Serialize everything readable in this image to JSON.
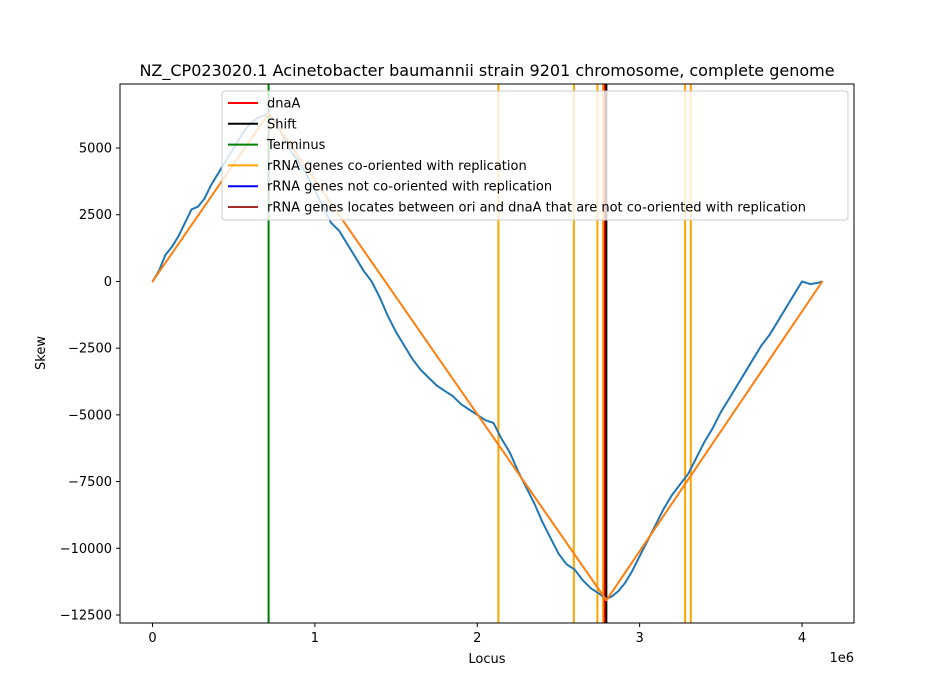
{
  "chart_data": {
    "type": "line",
    "title": "NZ_CP023020.1 Acinetobacter baumannii strain 9201 chromosome, complete genome",
    "xlabel": "Locus",
    "ylabel": "Skew",
    "x_offset_label": "1e6",
    "xlim": [
      -200000,
      4320000
    ],
    "ylim": [
      -12800,
      7400
    ],
    "x_ticks": [
      0,
      1000000,
      2000000,
      3000000,
      4000000
    ],
    "x_tick_labels": [
      "0",
      "1",
      "2",
      "3",
      "4"
    ],
    "y_ticks": [
      5000,
      2500,
      0,
      -2500,
      -5000,
      -7500,
      -10000,
      -12500
    ],
    "y_tick_labels": [
      "5000",
      "2500",
      "0",
      "−2500",
      "−5000",
      "−7500",
      "−10000",
      "−12500"
    ],
    "legend_position": "upper-right",
    "legend": [
      {
        "label": "dnaA",
        "color": "#ff0000"
      },
      {
        "label": "Shift",
        "color": "#000000"
      },
      {
        "label": "Terminus",
        "color": "#008000"
      },
      {
        "label": "rRNA genes co-oriented with replication",
        "color": "#ffa500"
      },
      {
        "label": "rRNA genes not co-oriented with replication",
        "color": "#0000ff"
      },
      {
        "label": "rRNA genes locates between ori and dnaA that are not co-oriented with replication",
        "color": "#a52a2a"
      }
    ],
    "vertical_lines": [
      {
        "name": "terminus",
        "x": 715000,
        "color": "#008000"
      },
      {
        "name": "rrna-co-oriented",
        "x": 2130000,
        "color": "#ffa500"
      },
      {
        "name": "rrna-co-oriented",
        "x": 2595000,
        "color": "#ffa500"
      },
      {
        "name": "rrna-co-oriented",
        "x": 2740000,
        "color": "#ffa500"
      },
      {
        "name": "rrna-co-oriented",
        "x": 2775000,
        "color": "#ffa500"
      },
      {
        "name": "dnaA",
        "x": 2785000,
        "color": "#ff0000"
      },
      {
        "name": "shift",
        "x": 2795000,
        "color": "#000000"
      },
      {
        "name": "rrna-co-oriented",
        "x": 3280000,
        "color": "#ffa500"
      },
      {
        "name": "rrna-co-oriented",
        "x": 3315000,
        "color": "#ffa500"
      }
    ],
    "series": [
      {
        "color": "#1f77b4",
        "x": [
          0,
          40000,
          80000,
          120000,
          160000,
          200000,
          240000,
          280000,
          320000,
          360000,
          400000,
          440000,
          480000,
          520000,
          560000,
          600000,
          640000,
          680000,
          715000,
          760000,
          800000,
          850000,
          900000,
          950000,
          1000000,
          1050000,
          1100000,
          1150000,
          1200000,
          1250000,
          1300000,
          1350000,
          1400000,
          1450000,
          1500000,
          1550000,
          1600000,
          1650000,
          1700000,
          1750000,
          1800000,
          1850000,
          1900000,
          1950000,
          2000000,
          2050000,
          2100000,
          2150000,
          2200000,
          2250000,
          2300000,
          2350000,
          2400000,
          2450000,
          2500000,
          2550000,
          2600000,
          2650000,
          2700000,
          2750000,
          2795000,
          2830000,
          2870000,
          2910000,
          2950000,
          3000000,
          3050000,
          3100000,
          3150000,
          3200000,
          3250000,
          3300000,
          3350000,
          3400000,
          3450000,
          3500000,
          3550000,
          3600000,
          3650000,
          3700000,
          3750000,
          3800000,
          3850000,
          3900000,
          3950000,
          4000000,
          4050000,
          4100000,
          4125000
        ],
        "values": [
          0,
          400,
          1000,
          1300,
          1700,
          2200,
          2700,
          2800,
          3100,
          3600,
          4000,
          4400,
          4800,
          5200,
          5600,
          5900,
          6100,
          6200,
          6300,
          6000,
          5500,
          4900,
          4500,
          4000,
          3400,
          2800,
          2200,
          1900,
          1400,
          900,
          400,
          0,
          -600,
          -1300,
          -1900,
          -2400,
          -2900,
          -3300,
          -3600,
          -3900,
          -4100,
          -4300,
          -4600,
          -4800,
          -5000,
          -5200,
          -5300,
          -5900,
          -6400,
          -7100,
          -7700,
          -8300,
          -9000,
          -9600,
          -10200,
          -10600,
          -10800,
          -11200,
          -11500,
          -11700,
          -11900,
          -11800,
          -11600,
          -11300,
          -10900,
          -10300,
          -9700,
          -9100,
          -8500,
          -8000,
          -7600,
          -7200,
          -6600,
          -6000,
          -5500,
          -4900,
          -4400,
          -3900,
          -3400,
          -2900,
          -2400,
          -2000,
          -1500,
          -1000,
          -500,
          0,
          -100,
          -50,
          0
        ]
      },
      {
        "color": "#ff7f0e",
        "x": [
          0,
          715000,
          2795000,
          4125000
        ],
        "values": [
          0,
          6300,
          -11950,
          0
        ]
      }
    ]
  }
}
